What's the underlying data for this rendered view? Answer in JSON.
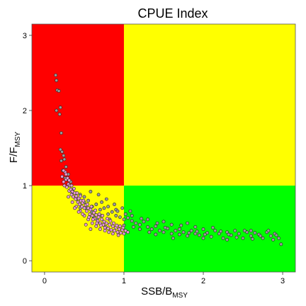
{
  "chart_data": {
    "type": "scatter",
    "title": "CPUE Index",
    "xlabel": {
      "main": "SSB/B",
      "sub": "MSY"
    },
    "ylabel": {
      "main": "F/F",
      "sub": "MSY"
    },
    "xlim": [
      -0.16,
      3.16
    ],
    "ylim": [
      -0.15,
      3.15
    ],
    "xticks": [
      "0",
      "1",
      "2",
      "3"
    ],
    "xtick_values": [
      0,
      1,
      2,
      3
    ],
    "yticks": [
      "0",
      "1",
      "2",
      "3"
    ],
    "ytick_values": [
      0,
      1,
      2,
      3
    ],
    "zones": [
      {
        "name": "overfished-overfishing",
        "x": [
          -0.16,
          1
        ],
        "y": [
          1,
          3.15
        ],
        "color": "#ff0000"
      },
      {
        "name": "healthy-overfishing",
        "x": [
          1,
          3.16
        ],
        "y": [
          1,
          3.15
        ],
        "color": "#ffff00"
      },
      {
        "name": "overfished-no-overfishing",
        "x": [
          -0.16,
          1
        ],
        "y": [
          -0.15,
          1
        ],
        "color": "#ffff00"
      },
      {
        "name": "healthy",
        "x": [
          1,
          3.16
        ],
        "y": [
          -0.15,
          1
        ],
        "color": "#00ff00"
      }
    ],
    "series": [
      {
        "marker_fill": "#9a9a9a",
        "points": [
          [
            0.14,
            2.47
          ],
          [
            0.15,
            2.4
          ],
          [
            0.16,
            2.27
          ],
          [
            0.18,
            2.26
          ],
          [
            0.15,
            2.0
          ],
          [
            0.2,
            2.04
          ],
          [
            0.19,
            1.95
          ],
          [
            0.21,
            1.7
          ],
          [
            0.2,
            1.48
          ],
          [
            0.22,
            1.45
          ],
          [
            0.24,
            1.4
          ],
          [
            0.21,
            1.33
          ],
          [
            0.25,
            1.35
          ],
          [
            0.27,
            1.25
          ],
          [
            0.23,
            1.2
          ],
          [
            0.26,
            1.1
          ],
          [
            0.3,
            1.15
          ],
          [
            0.33,
            1.05
          ],
          [
            0.28,
            1.08
          ],
          [
            0.32,
            1.0
          ],
          [
            0.36,
            0.95
          ],
          [
            0.4,
            0.9
          ],
          [
            0.45,
            0.88
          ],
          [
            0.5,
            0.78
          ],
          [
            0.55,
            0.8
          ],
          [
            0.6,
            0.72
          ],
          [
            0.65,
            0.75
          ],
          [
            0.7,
            0.68
          ],
          [
            0.75,
            0.7
          ],
          [
            0.8,
            0.62
          ],
          [
            0.85,
            0.65
          ],
          [
            0.9,
            0.6
          ],
          [
            0.95,
            0.58
          ],
          [
            1.0,
            0.55
          ],
          [
            1.05,
            0.57
          ],
          [
            1.1,
            0.53
          ],
          [
            1.15,
            0.5
          ],
          [
            1.2,
            0.48
          ],
          [
            1.25,
            0.52
          ],
          [
            1.3,
            0.45
          ],
          [
            1.35,
            0.42
          ],
          [
            1.4,
            0.46
          ],
          [
            1.45,
            0.4
          ],
          [
            1.5,
            0.38
          ],
          [
            1.55,
            0.43
          ],
          [
            1.6,
            0.36
          ],
          [
            1.65,
            0.4
          ],
          [
            1.7,
            0.35
          ],
          [
            1.75,
            0.38
          ],
          [
            1.8,
            0.33
          ],
          [
            1.85,
            0.4
          ],
          [
            1.9,
            0.36
          ],
          [
            1.95,
            0.34
          ],
          [
            2.0,
            0.42
          ],
          [
            2.05,
            0.37
          ],
          [
            2.1,
            0.32
          ],
          [
            2.15,
            0.4
          ],
          [
            2.2,
            0.36
          ],
          [
            2.25,
            0.3
          ],
          [
            2.3,
            0.38
          ],
          [
            2.35,
            0.34
          ],
          [
            2.4,
            0.4
          ],
          [
            2.45,
            0.36
          ],
          [
            2.5,
            0.3
          ],
          [
            2.55,
            0.38
          ],
          [
            2.6,
            0.33
          ],
          [
            2.65,
            0.37
          ],
          [
            2.7,
            0.35
          ],
          [
            2.75,
            0.3
          ],
          [
            2.8,
            0.38
          ],
          [
            2.85,
            0.33
          ],
          [
            2.9,
            0.36
          ],
          [
            2.95,
            0.3
          ],
          [
            2.98,
            0.22
          ],
          [
            2.88,
            0.28
          ],
          [
            2.6,
            0.4
          ],
          [
            2.3,
            0.28
          ],
          [
            2.0,
            0.3
          ],
          [
            1.9,
            0.45
          ],
          [
            1.8,
            0.5
          ],
          [
            1.7,
            0.42
          ],
          [
            1.6,
            0.48
          ],
          [
            1.5,
            0.52
          ],
          [
            1.4,
            0.35
          ],
          [
            1.3,
            0.55
          ],
          [
            1.2,
            0.42
          ],
          [
            1.1,
            0.6
          ],
          [
            1.0,
            0.47
          ],
          [
            0.9,
            0.68
          ],
          [
            0.8,
            0.72
          ],
          [
            0.7,
            0.6
          ],
          [
            0.6,
            0.65
          ],
          [
            0.5,
            0.85
          ],
          [
            0.45,
            0.7
          ],
          [
            0.4,
            0.82
          ],
          [
            0.35,
            0.9
          ],
          [
            0.62,
            0.58
          ],
          [
            0.72,
            0.78
          ],
          [
            0.82,
            0.55
          ],
          [
            0.92,
            0.66
          ],
          [
            1.02,
            0.62
          ],
          [
            1.12,
            0.45
          ],
          [
            1.22,
            0.56
          ],
          [
            1.32,
            0.38
          ],
          [
            1.42,
            0.5
          ],
          [
            1.52,
            0.44
          ],
          [
            1.62,
            0.3
          ],
          [
            1.72,
            0.47
          ],
          [
            1.82,
            0.37
          ],
          [
            1.92,
            0.39
          ],
          [
            2.02,
            0.35
          ],
          [
            2.12,
            0.44
          ],
          [
            2.22,
            0.39
          ],
          [
            2.32,
            0.35
          ],
          [
            2.42,
            0.31
          ],
          [
            2.52,
            0.4
          ],
          [
            2.62,
            0.29
          ],
          [
            2.72,
            0.33
          ],
          [
            2.82,
            0.4
          ],
          [
            2.92,
            0.34
          ],
          [
            0.58,
            0.92
          ],
          [
            0.68,
            0.88
          ],
          [
            0.78,
            0.82
          ],
          [
            0.88,
            0.75
          ],
          [
            0.98,
            0.7
          ],
          [
            1.08,
            0.66
          ],
          [
            0.52,
            0.7
          ],
          [
            0.66,
            0.55
          ]
        ]
      },
      {
        "marker_fill": "#e79ad0",
        "points": [
          [
            0.22,
            1.12
          ],
          [
            0.24,
            1.05
          ],
          [
            0.25,
            1.0
          ],
          [
            0.27,
            1.08
          ],
          [
            0.28,
            0.98
          ],
          [
            0.3,
            1.02
          ],
          [
            0.31,
            0.93
          ],
          [
            0.33,
            0.95
          ],
          [
            0.34,
            0.88
          ],
          [
            0.35,
            0.92
          ],
          [
            0.36,
            0.85
          ],
          [
            0.38,
            0.9
          ],
          [
            0.39,
            0.82
          ],
          [
            0.4,
            0.86
          ],
          [
            0.42,
            0.78
          ],
          [
            0.43,
            0.83
          ],
          [
            0.44,
            0.75
          ],
          [
            0.46,
            0.8
          ],
          [
            0.47,
            0.72
          ],
          [
            0.48,
            0.77
          ],
          [
            0.5,
            0.7
          ],
          [
            0.52,
            0.74
          ],
          [
            0.53,
            0.66
          ],
          [
            0.55,
            0.7
          ],
          [
            0.57,
            0.62
          ],
          [
            0.58,
            0.68
          ],
          [
            0.6,
            0.6
          ],
          [
            0.62,
            0.64
          ],
          [
            0.63,
            0.56
          ],
          [
            0.65,
            0.61
          ],
          [
            0.67,
            0.53
          ],
          [
            0.68,
            0.58
          ],
          [
            0.7,
            0.5
          ],
          [
            0.72,
            0.55
          ],
          [
            0.74,
            0.48
          ],
          [
            0.75,
            0.52
          ],
          [
            0.77,
            0.45
          ],
          [
            0.78,
            0.5
          ],
          [
            0.8,
            0.43
          ],
          [
            0.82,
            0.48
          ],
          [
            0.84,
            0.41
          ],
          [
            0.86,
            0.46
          ],
          [
            0.88,
            0.4
          ],
          [
            0.9,
            0.44
          ],
          [
            0.92,
            0.38
          ],
          [
            0.94,
            0.42
          ],
          [
            0.96,
            0.37
          ],
          [
            0.98,
            0.41
          ],
          [
            1.0,
            0.36
          ],
          [
            1.02,
            0.4
          ],
          [
            1.05,
            0.38
          ],
          [
            0.26,
            1.18
          ],
          [
            0.29,
            1.1
          ],
          [
            0.32,
            1.0
          ],
          [
            0.37,
            0.96
          ],
          [
            0.41,
            0.9
          ],
          [
            0.45,
            0.86
          ],
          [
            0.49,
            0.8
          ],
          [
            0.54,
            0.75
          ],
          [
            0.59,
            0.72
          ],
          [
            0.64,
            0.67
          ],
          [
            0.69,
            0.62
          ],
          [
            0.73,
            0.6
          ],
          [
            0.79,
            0.56
          ],
          [
            0.83,
            0.53
          ],
          [
            0.87,
            0.5
          ],
          [
            0.91,
            0.47
          ],
          [
            0.95,
            0.46
          ],
          [
            0.99,
            0.44
          ],
          [
            0.3,
            0.85
          ],
          [
            0.35,
            0.78
          ],
          [
            0.4,
            0.72
          ],
          [
            0.45,
            0.66
          ],
          [
            0.5,
            0.6
          ],
          [
            0.55,
            0.55
          ],
          [
            0.6,
            0.5
          ],
          [
            0.65,
            0.46
          ],
          [
            0.7,
            0.42
          ],
          [
            0.76,
            0.4
          ],
          [
            0.81,
            0.38
          ],
          [
            0.86,
            0.36
          ],
          [
            0.93,
            0.34
          ],
          [
            0.38,
            0.7
          ],
          [
            0.43,
            0.65
          ],
          [
            0.48,
            0.62
          ],
          [
            0.56,
            0.58
          ],
          [
            0.61,
            0.55
          ],
          [
            0.66,
            0.5
          ],
          [
            0.71,
            0.47
          ],
          [
            0.76,
            0.44
          ],
          [
            0.24,
            1.2
          ],
          [
            0.27,
            1.15
          ],
          [
            0.31,
            1.07
          ],
          [
            0.34,
            1.0
          ],
          [
            0.58,
            0.42
          ],
          [
            0.52,
            0.48
          ]
        ]
      }
    ]
  }
}
